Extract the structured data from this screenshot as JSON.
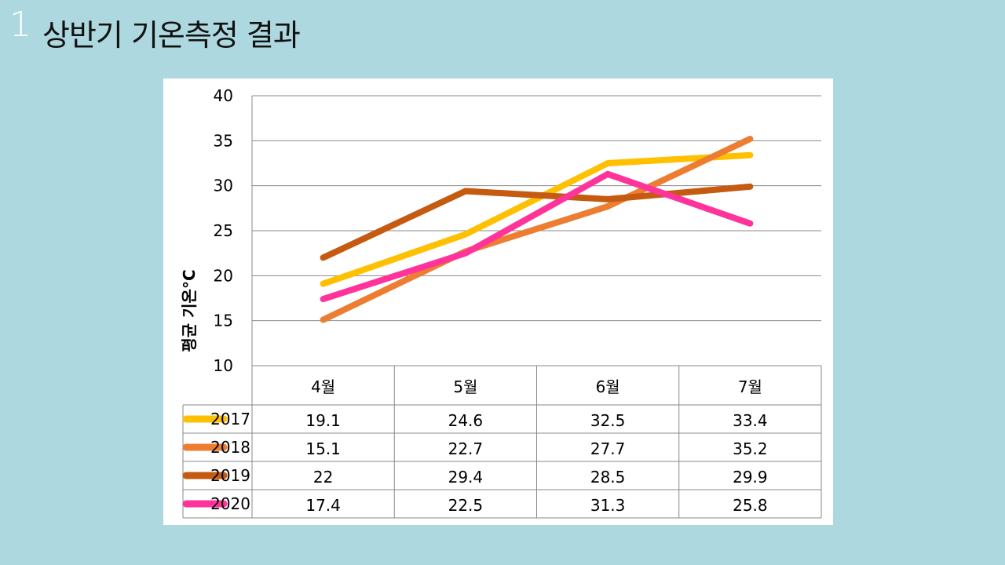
{
  "slide": {
    "number": "1",
    "title": "상반기 기온측정 결과"
  },
  "chart_data": {
    "type": "line",
    "title": "",
    "xlabel": "",
    "ylabel": "평균 기온°C",
    "ylim": [
      10,
      40
    ],
    "yticks": [
      10,
      15,
      20,
      25,
      30,
      35,
      40
    ],
    "grid": true,
    "legend": "data-table-left",
    "categories": [
      "4월",
      "5월",
      "6월",
      "7월"
    ],
    "series": [
      {
        "name": "2017",
        "color": "#ffc000",
        "values": [
          19.1,
          24.6,
          32.5,
          33.4
        ],
        "labels": [
          "19.1",
          "24.6",
          "32.5",
          "33.4"
        ]
      },
      {
        "name": "2018",
        "color": "#ed7d31",
        "values": [
          15.1,
          22.7,
          27.7,
          35.2
        ],
        "labels": [
          "15.1",
          "22.7",
          "27.7",
          "35.2"
        ]
      },
      {
        "name": "2019",
        "color": "#c55a11",
        "values": [
          22,
          29.4,
          28.5,
          29.9
        ],
        "labels": [
          "22",
          "29.4",
          "28.5",
          "29.9"
        ]
      },
      {
        "name": "2020",
        "color": "#ff3399",
        "values": [
          17.4,
          22.5,
          31.3,
          25.8
        ],
        "labels": [
          "17.4",
          "22.5",
          "31.3",
          "25.8"
        ]
      }
    ]
  }
}
